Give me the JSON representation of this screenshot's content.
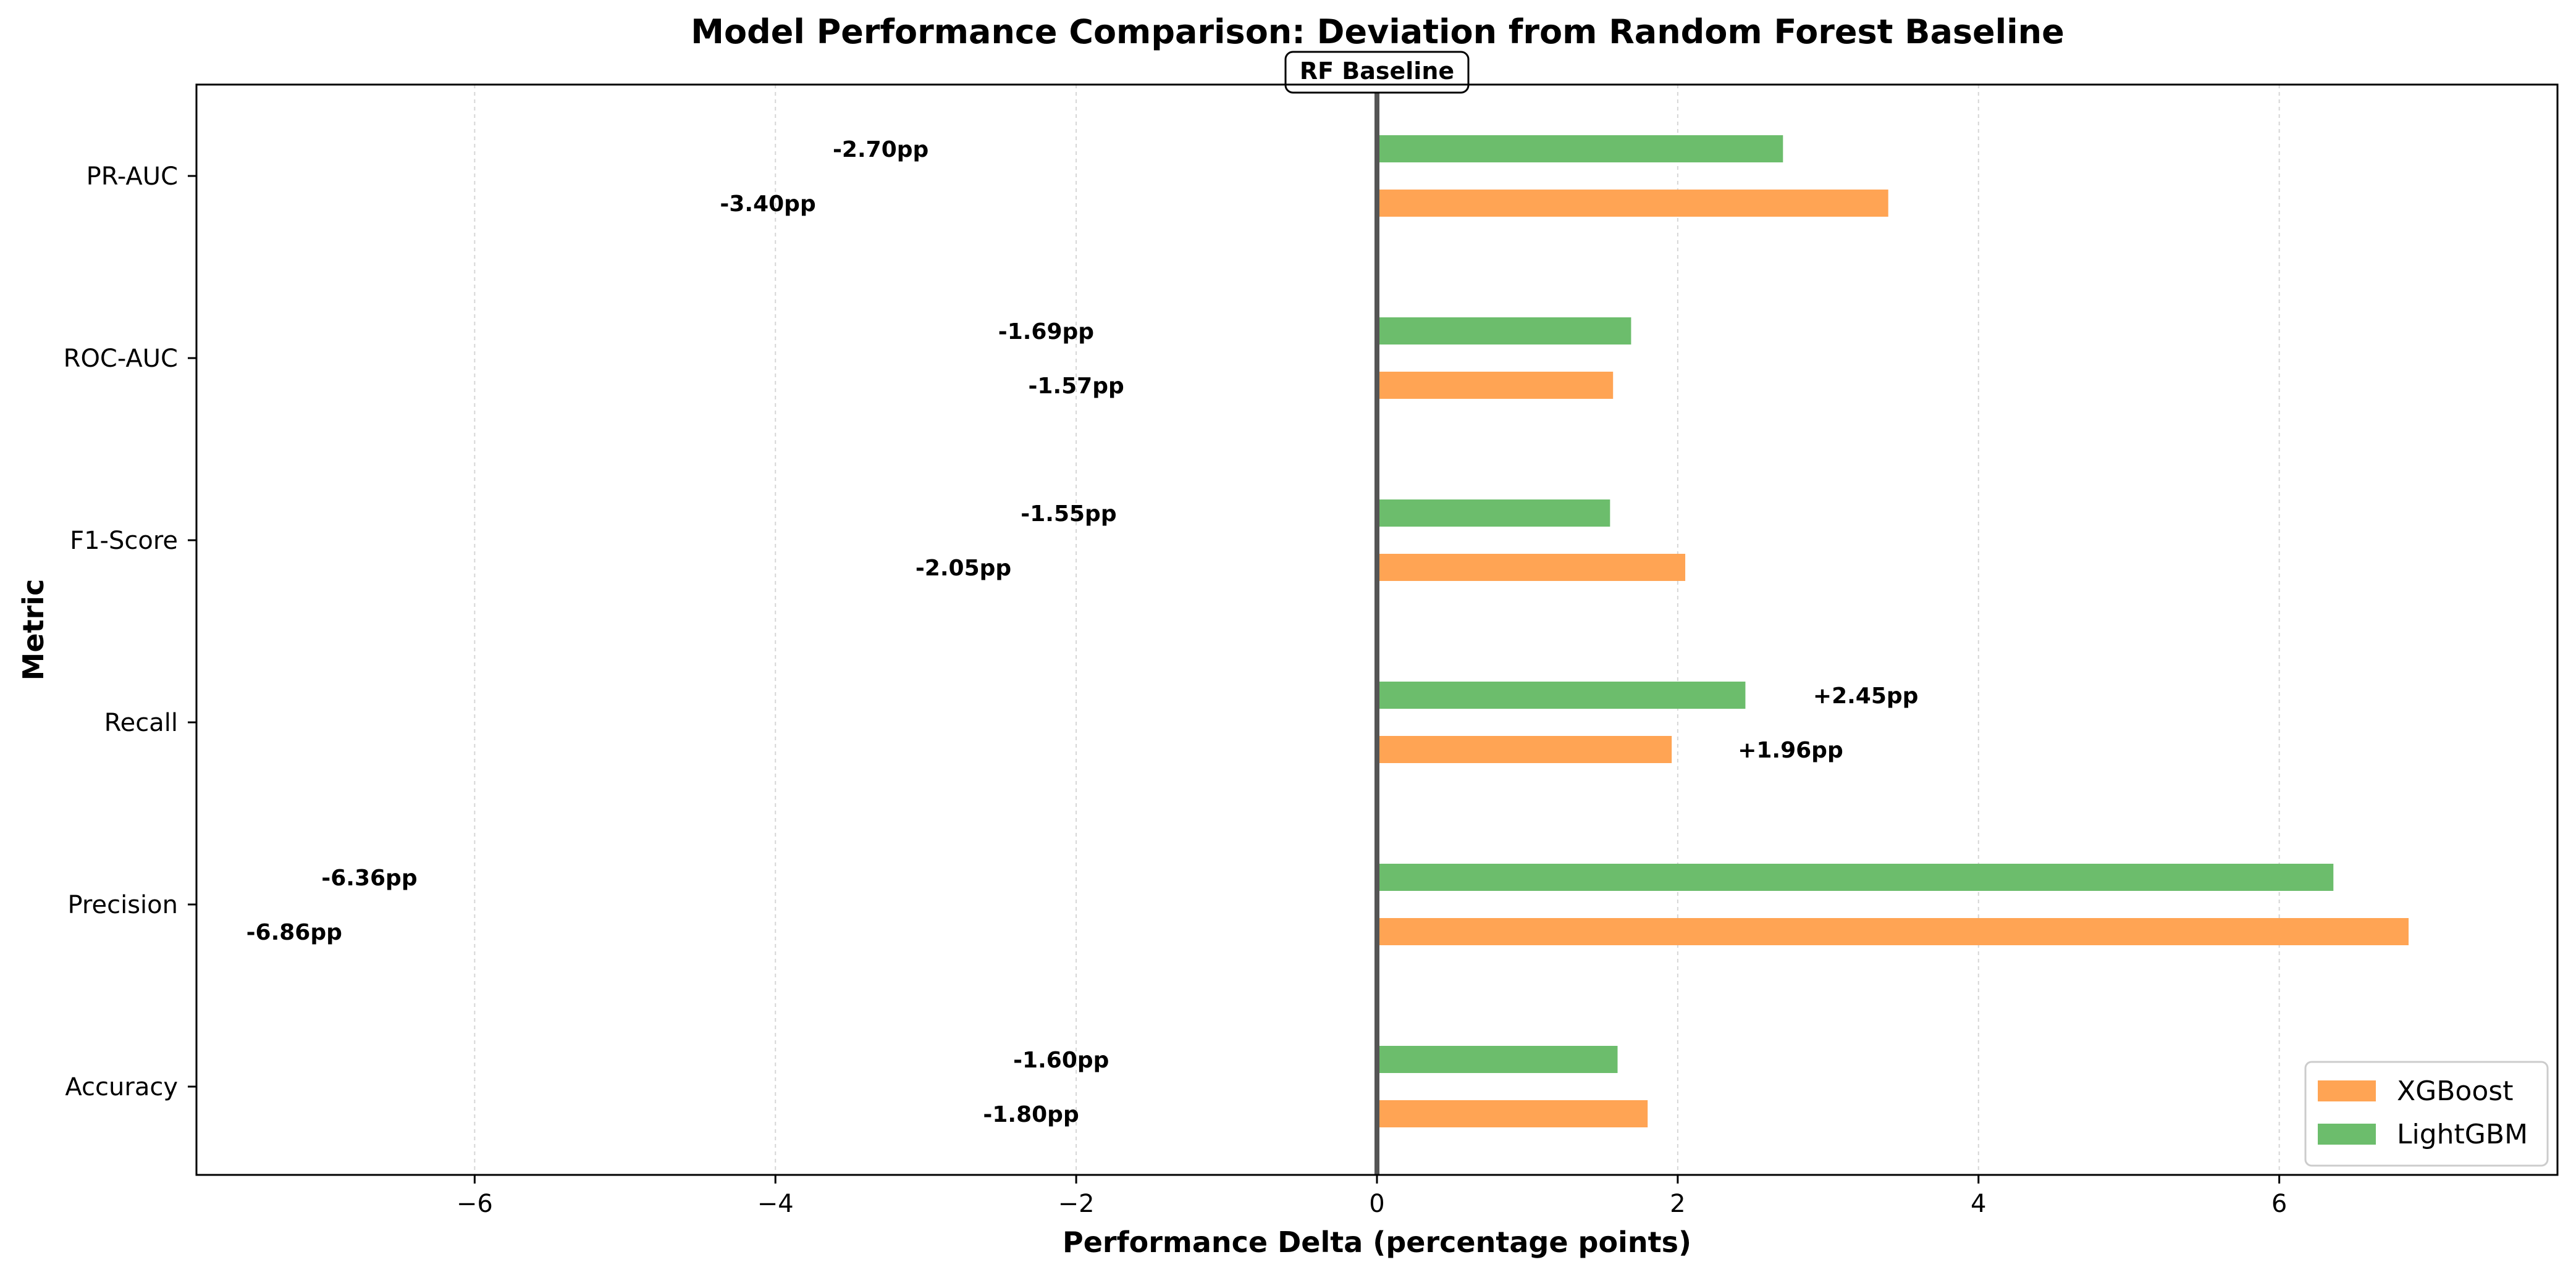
{
  "chart_data": {
    "type": "bar",
    "orientation": "horizontal",
    "title": "Model Performance Comparison: Deviation from Random Forest Baseline",
    "xlabel": "Performance Delta (percentage points)",
    "ylabel": "Metric",
    "categories": [
      "Accuracy",
      "Precision",
      "Recall",
      "F1-Score",
      "ROC-AUC",
      "PR-AUC"
    ],
    "series": [
      {
        "name": "XGBoost",
        "color": "#ffa454",
        "values": [
          1.8,
          6.86,
          1.96,
          2.05,
          1.57,
          3.4
        ],
        "labels": [
          "-1.80pp",
          "-6.86pp",
          "+1.96pp",
          "-2.05pp",
          "-1.57pp",
          "-3.40pp"
        ],
        "label_x": [
          -2.3,
          -7.2,
          2.75,
          -2.75,
          -2.0,
          -4.05
        ]
      },
      {
        "name": "LightGBM",
        "color": "#6cbd6c",
        "values": [
          1.6,
          6.36,
          2.45,
          1.55,
          1.69,
          2.7
        ],
        "labels": [
          "-1.60pp",
          "-6.36pp",
          "+2.45pp",
          "-1.55pp",
          "-1.69pp",
          "-2.70pp"
        ],
        "label_x": [
          -2.1,
          -6.7,
          3.25,
          -2.05,
          -2.2,
          -3.3
        ]
      }
    ],
    "xlim": [
      -7.85,
      7.85
    ],
    "xticks": [
      -6,
      -4,
      -2,
      0,
      2,
      4,
      6
    ],
    "xtick_labels": [
      "−6",
      "−4",
      "−2",
      "0",
      "2",
      "4",
      "6"
    ],
    "grid": "x-dotted",
    "legend_position": "lower-right",
    "baseline": {
      "x": 0,
      "label": "RF Baseline"
    }
  }
}
